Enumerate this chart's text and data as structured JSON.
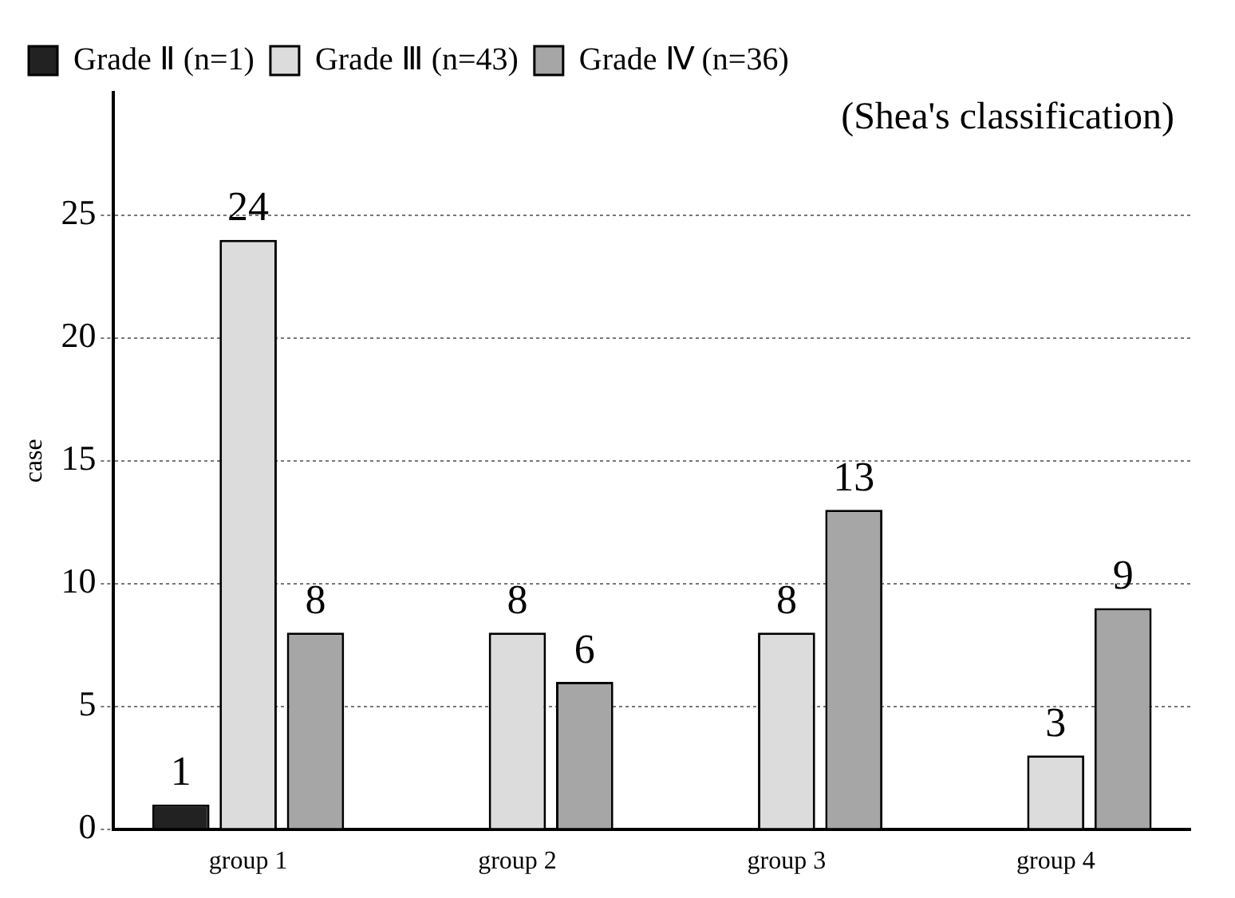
{
  "chart_data": {
    "type": "bar",
    "categories": [
      "group 1",
      "group 2",
      "group 3",
      "group 4"
    ],
    "ylabel": "case",
    "annotations": [
      "(Shea's classification)"
    ],
    "series": [
      {
        "name": "Grade Ⅱ (n=1)",
        "color": "#222222",
        "values": [
          1,
          null,
          null,
          null
        ]
      },
      {
        "name": "Grade Ⅲ (n=43)",
        "color": "#dcdcdc",
        "values": [
          24,
          8,
          8,
          3
        ]
      },
      {
        "name": "Grade Ⅳ (n=36)",
        "color": "#a6a6a6",
        "values": [
          8,
          6,
          13,
          9
        ]
      }
    ],
    "ylim": [
      0,
      30
    ],
    "yticks": [
      0,
      5,
      10,
      15,
      20,
      25
    ],
    "grid": "y",
    "legend": "top",
    "data_labels": true
  }
}
